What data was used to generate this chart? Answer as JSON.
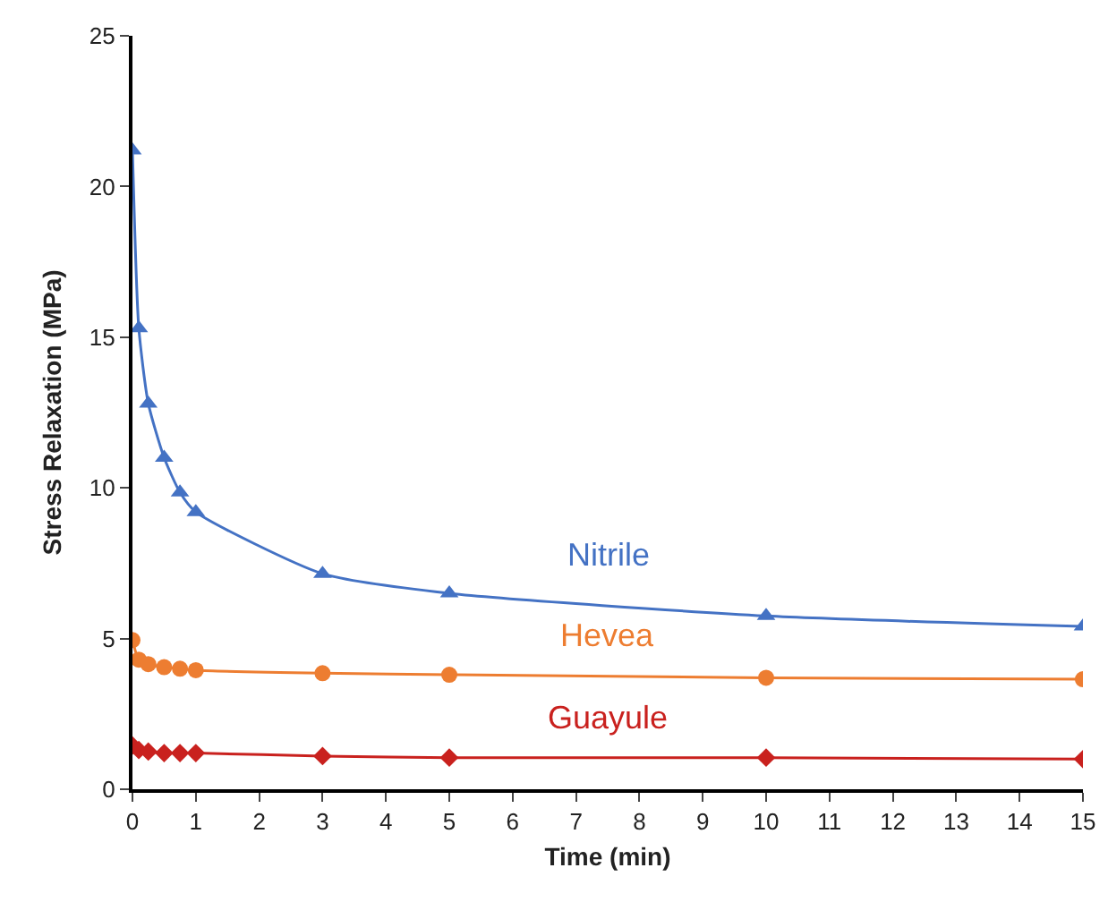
{
  "chart_data": {
    "type": "line",
    "xlabel": "Time (min)",
    "ylabel": "Stress Relaxation (MPa)",
    "x": [
      0,
      0.1,
      0.25,
      0.5,
      0.75,
      1,
      3,
      5,
      10,
      15
    ],
    "xlim": [
      0,
      15
    ],
    "xticks": [
      0,
      1,
      2,
      3,
      4,
      5,
      6,
      7,
      8,
      9,
      10,
      11,
      12,
      13,
      14,
      15
    ],
    "ylim": [
      0,
      25
    ],
    "yticks": [
      0,
      5,
      10,
      15,
      20,
      25
    ],
    "grid": false,
    "legend": false,
    "series": [
      {
        "name": "Nitrile",
        "color": "#4472c4",
        "marker": "triangle",
        "values": [
          21.2,
          15.3,
          12.8,
          11.0,
          9.85,
          9.2,
          7.15,
          6.5,
          5.75,
          5.4
        ]
      },
      {
        "name": "Hevea",
        "color": "#ed7d31",
        "marker": "circle",
        "values": [
          4.95,
          4.3,
          4.15,
          4.05,
          4.0,
          3.95,
          3.85,
          3.8,
          3.7,
          3.65
        ]
      },
      {
        "name": "Guayule",
        "color": "#c9211e",
        "marker": "diamond",
        "values": [
          1.45,
          1.3,
          1.25,
          1.2,
          1.2,
          1.2,
          1.1,
          1.05,
          1.05,
          1.0
        ]
      }
    ]
  }
}
